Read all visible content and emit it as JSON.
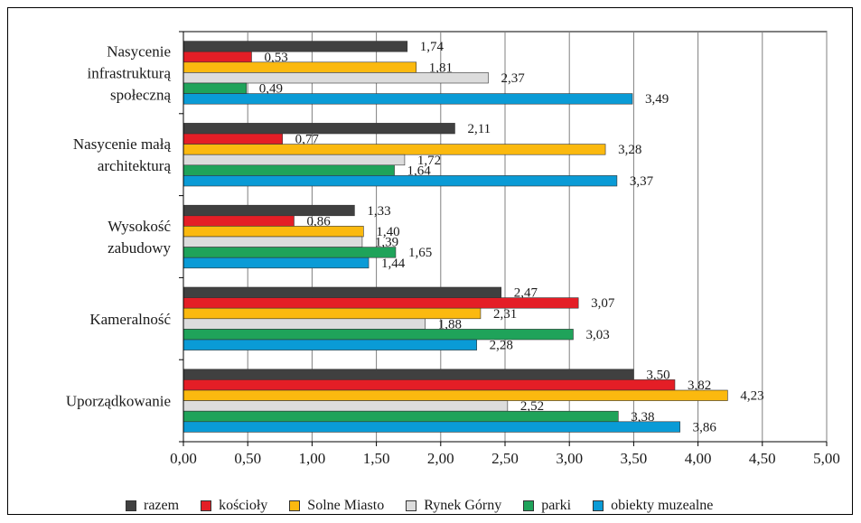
{
  "chart_data": {
    "type": "bar",
    "orientation": "horizontal",
    "categories": [
      [
        "Nasycenie",
        "infrastrukturą",
        "społeczną"
      ],
      [
        "Nasycenie małą",
        "architekturą"
      ],
      [
        "Wysokość",
        "zabudowy"
      ],
      [
        "Kameralność"
      ],
      [
        "Uporządkowanie"
      ]
    ],
    "series": [
      {
        "name": "razem",
        "color": "#404040",
        "values": [
          1.74,
          2.11,
          1.33,
          2.47,
          3.5
        ],
        "labels": [
          "1,74",
          "2,11",
          "1,33",
          "2,47",
          "3,50"
        ]
      },
      {
        "name": "kościoły",
        "color": "#e41e26",
        "values": [
          0.53,
          0.77,
          0.86,
          3.07,
          3.82
        ],
        "labels": [
          "0,53",
          "0,77",
          "0,86",
          "3,07",
          "3,82"
        ]
      },
      {
        "name": "Solne Miasto",
        "color": "#fbb90f",
        "values": [
          1.81,
          3.28,
          1.4,
          2.31,
          4.23
        ],
        "labels": [
          "1,81",
          "3,28",
          "1,40",
          "2,31",
          "4,23"
        ]
      },
      {
        "name": "Rynek Górny",
        "color": "#dcdcdc",
        "values": [
          2.37,
          1.72,
          1.39,
          1.88,
          2.52
        ],
        "labels": [
          "2,37",
          "1,72",
          "1,39",
          "1,88",
          "2,52"
        ]
      },
      {
        "name": "parki",
        "color": "#1fa35a",
        "values": [
          0.49,
          1.64,
          1.65,
          3.03,
          3.38
        ],
        "labels": [
          "0,49",
          "1,64",
          "1,65",
          "3,03",
          "3,38"
        ]
      },
      {
        "name": "obiekty muzealne",
        "color": "#0a9bd6",
        "values": [
          3.49,
          3.37,
          1.44,
          2.28,
          3.86
        ],
        "labels": [
          "3,49",
          "3,37",
          "1,44",
          "2,28",
          "3,86"
        ]
      }
    ],
    "x_ticks": [
      0,
      0.5,
      1,
      1.5,
      2,
      2.5,
      3,
      3.5,
      4,
      4.5,
      5
    ],
    "x_tick_labels": [
      "0,00",
      "0,50",
      "1,00",
      "1,50",
      "2,00",
      "2,50",
      "3,00",
      "3,50",
      "4,00",
      "4,50",
      "5,00"
    ],
    "xlim": [
      0,
      5
    ],
    "grid": true,
    "legend_position": "bottom",
    "title": "",
    "xlabel": "",
    "ylabel": ""
  }
}
